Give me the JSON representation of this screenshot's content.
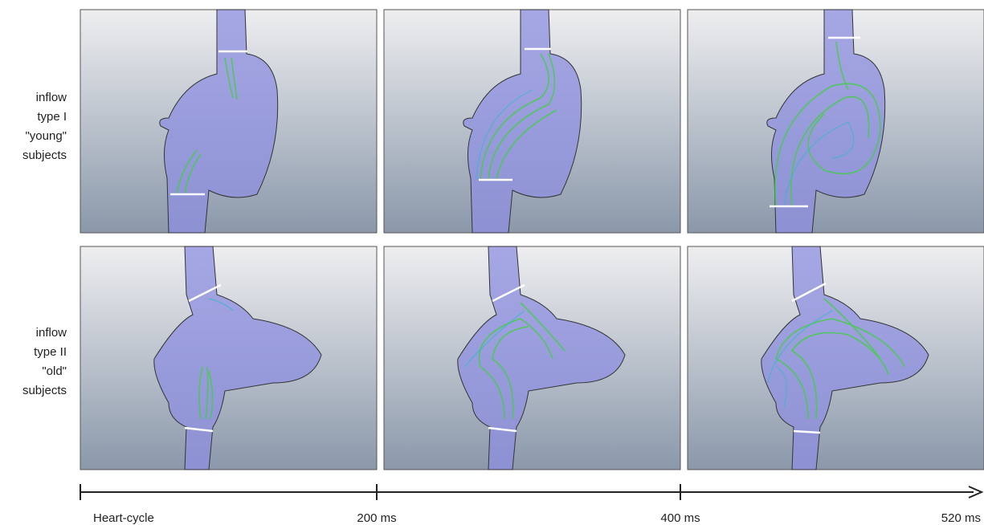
{
  "rows": [
    {
      "label_lines": [
        "inflow",
        "type I",
        "\"young\"",
        "subjects"
      ]
    },
    {
      "label_lines": [
        "inflow",
        "type II",
        "\"old\"",
        "subjects"
      ]
    }
  ],
  "timeline": {
    "labels": [
      "Heart-cycle",
      "200 ms",
      "400 ms",
      "520 ms"
    ]
  }
}
